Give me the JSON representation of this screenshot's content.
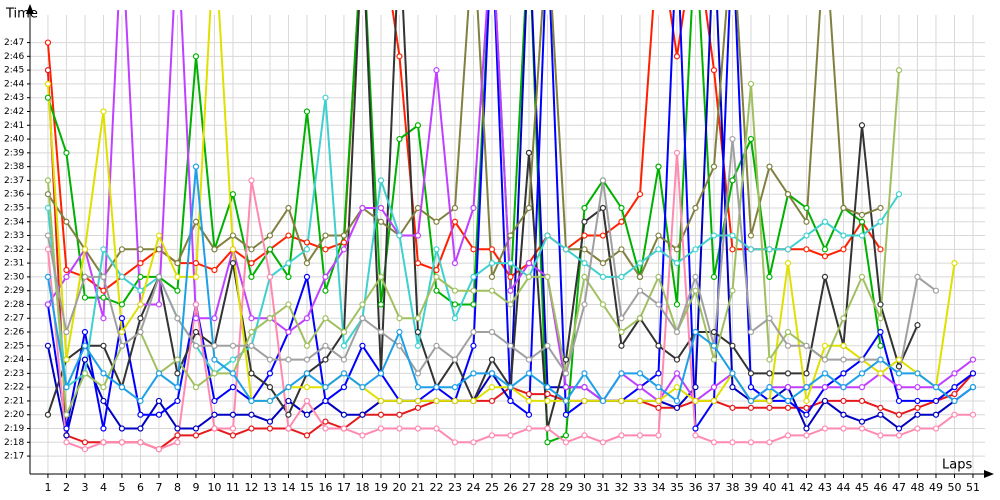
{
  "chart_data": {
    "type": "line",
    "x_label": "Laps",
    "y_label": "Time",
    "x": [
      1,
      2,
      3,
      4,
      5,
      6,
      7,
      8,
      9,
      10,
      11,
      12,
      13,
      14,
      15,
      16,
      17,
      18,
      19,
      20,
      21,
      22,
      23,
      24,
      25,
      26,
      27,
      28,
      29,
      30,
      31,
      32,
      33,
      34,
      35,
      36,
      37,
      38,
      39,
      40,
      41,
      42,
      43,
      44,
      45,
      46,
      47,
      48,
      49,
      50,
      51
    ],
    "xlim": [
      0.03,
      51.65
    ],
    "xticks": [
      1,
      2,
      3,
      4,
      5,
      6,
      7,
      8,
      9,
      10,
      11,
      12,
      13,
      14,
      15,
      16,
      17,
      18,
      19,
      20,
      21,
      22,
      23,
      24,
      25,
      26,
      27,
      28,
      29,
      30,
      31,
      32,
      33,
      34,
      35,
      36,
      37,
      38,
      39,
      40,
      41,
      42,
      43,
      44,
      45,
      46,
      47,
      48,
      49,
      50,
      51
    ],
    "ylim": [
      135.7,
      169
    ],
    "yticks": [
      {
        "value": 137,
        "label": "2:17"
      },
      {
        "value": 138,
        "label": "2:18"
      },
      {
        "value": 139,
        "label": "2:19"
      },
      {
        "value": 140,
        "label": "2:20"
      },
      {
        "value": 141,
        "label": "2:21"
      },
      {
        "value": 142,
        "label": "2:22"
      },
      {
        "value": 143,
        "label": "2:23"
      },
      {
        "value": 144,
        "label": "2:24"
      },
      {
        "value": 145,
        "label": "2:25"
      },
      {
        "value": 146,
        "label": "2:26"
      },
      {
        "value": 147,
        "label": "2:27"
      },
      {
        "value": 148,
        "label": "2:28"
      },
      {
        "value": 149,
        "label": "2:29"
      },
      {
        "value": 150,
        "label": "2:30"
      },
      {
        "value": 151,
        "label": "2:31"
      },
      {
        "value": 152,
        "label": "2:32"
      },
      {
        "value": 153,
        "label": "2:33"
      },
      {
        "value": 154,
        "label": "2:34"
      },
      {
        "value": 155,
        "label": "2:35"
      },
      {
        "value": 156,
        "label": "2:36"
      },
      {
        "value": 157,
        "label": "2:37"
      },
      {
        "value": 158,
        "label": "2:38"
      },
      {
        "value": 159,
        "label": "2:39"
      },
      {
        "value": 160,
        "label": "2:40"
      },
      {
        "value": 161,
        "label": "2:41"
      },
      {
        "value": 162,
        "label": "2:42"
      },
      {
        "value": 163,
        "label": "2:43"
      },
      {
        "value": 164,
        "label": "2:44"
      },
      {
        "value": 165,
        "label": "2:45"
      },
      {
        "value": 166,
        "label": "2:46"
      },
      {
        "value": 167,
        "label": "2:47"
      }
    ],
    "grid": true,
    "series": [
      {
        "color": "#e41a1c",
        "values": [
          165,
          138.5,
          138,
          138,
          138,
          138,
          137.5,
          138.5,
          138.5,
          139,
          138.5,
          139,
          139,
          139,
          138.5,
          139.5,
          139,
          140,
          140,
          140,
          140.5,
          141,
          141,
          141,
          141,
          142,
          141.5,
          141.5,
          141,
          141,
          141,
          141,
          141,
          140.5,
          140.5,
          141,
          141,
          140.5,
          140.5,
          140.5,
          140.5,
          140.5,
          141,
          141,
          141,
          140.5,
          140,
          140.5,
          141,
          141.5,
          143
        ]
      },
      {
        "color": "#ff2000",
        "values": [
          167,
          150.5,
          150,
          149,
          150,
          151,
          152,
          151,
          151,
          150.5,
          152,
          151,
          152,
          153,
          152.5,
          152,
          152.5,
          175,
          175,
          166,
          151,
          150.5,
          154,
          152,
          152,
          150,
          151,
          153,
          152,
          153,
          153,
          154,
          156,
          175,
          166,
          175,
          165,
          152,
          152,
          152,
          152,
          152,
          151.5,
          152,
          154,
          152,
          null,
          null,
          null,
          null,
          null
        ]
      },
      {
        "color": "#00b000",
        "values": [
          163,
          159,
          148.5,
          148.5,
          148,
          150,
          150,
          149,
          166,
          152,
          156,
          150,
          152,
          150,
          162,
          149,
          153,
          175,
          148,
          160,
          161,
          149,
          148,
          148,
          175,
          149,
          175,
          138,
          138.5,
          155,
          157,
          155,
          150,
          158,
          148,
          175,
          150,
          157,
          160,
          150,
          156,
          155,
          152,
          155,
          154,
          145,
          null,
          null,
          null,
          null,
          null
        ]
      },
      {
        "color": "#0000c0",
        "values": [
          145,
          138.5,
          144,
          141,
          139,
          139,
          141,
          139,
          139,
          140,
          140,
          140,
          139.5,
          141,
          140,
          141,
          140,
          140,
          141,
          141,
          141,
          141,
          141,
          141,
          143,
          141,
          175,
          142,
          142,
          142,
          141,
          141,
          141,
          141,
          140.5,
          142,
          175,
          142,
          141,
          141,
          142,
          139,
          141,
          140,
          139.5,
          140,
          139,
          140,
          140,
          141,
          142
        ]
      },
      {
        "color": "#0000ff",
        "values": [
          148,
          139,
          146,
          139,
          147,
          140,
          140,
          141,
          148,
          141,
          142,
          141,
          143,
          146,
          150,
          141,
          142,
          145,
          143,
          141,
          141,
          142,
          141,
          145,
          175,
          141,
          140,
          175,
          140,
          141,
          141,
          141,
          142,
          143,
          175,
          139,
          141,
          175,
          142,
          141,
          141,
          140,
          142,
          143,
          144,
          146,
          141,
          141,
          141,
          142,
          143
        ]
      },
      {
        "color": "#333333",
        "values": [
          140,
          144,
          145,
          145,
          142,
          147,
          150,
          143,
          146,
          145,
          151,
          143,
          142,
          140,
          143,
          144,
          146,
          175,
          143,
          175,
          146,
          142,
          144,
          141,
          144,
          142,
          159,
          139,
          144,
          154,
          155,
          145,
          147,
          145,
          144,
          146,
          146,
          145,
          143,
          143,
          143,
          143,
          150,
          145,
          161,
          148,
          143.5,
          146.5,
          null,
          null,
          null
        ]
      },
      {
        "color": "#808040",
        "values": [
          156,
          154,
          152,
          150,
          152,
          152,
          152,
          151,
          154,
          152,
          153,
          152,
          153,
          155,
          151,
          153,
          153,
          155,
          154,
          153,
          155,
          154,
          155,
          175,
          150,
          153,
          155,
          175,
          152,
          152,
          151,
          152,
          150,
          153,
          152,
          155,
          158,
          175,
          153,
          158,
          156,
          154,
          175,
          155,
          154.5,
          155,
          null,
          null,
          null,
          null,
          null
        ]
      },
      {
        "color": "#c040ff",
        "values": [
          148,
          150,
          152,
          147,
          175,
          148,
          148,
          175,
          147,
          147,
          152,
          147,
          147,
          146,
          147,
          150,
          152,
          155,
          155,
          153,
          153,
          165,
          151,
          155,
          175,
          149,
          151,
          150,
          142,
          142,
          141,
          143,
          142,
          141,
          143,
          141,
          142,
          143,
          141,
          142,
          142,
          142,
          142,
          142,
          142,
          143,
          142,
          142,
          142,
          143,
          144
        ]
      },
      {
        "color": "#40d0d0",
        "values": [
          155,
          142,
          143,
          152,
          150,
          149,
          150,
          147,
          145,
          143,
          144,
          145,
          150,
          151,
          152,
          163,
          145,
          147,
          157,
          153,
          145,
          152,
          147,
          150,
          151,
          151,
          150,
          153,
          152,
          151,
          150,
          150,
          151,
          152,
          151,
          152,
          153,
          153,
          152,
          152,
          152,
          153,
          154,
          153,
          153,
          154,
          156,
          null,
          null,
          null,
          null
        ]
      },
      {
        "color": "#ff8ab0",
        "values": [
          152,
          138,
          137.5,
          138,
          138,
          138,
          137.5,
          138,
          148,
          139,
          139,
          157,
          150,
          139,
          141,
          139,
          139,
          138.5,
          139,
          139,
          139,
          139,
          138,
          138,
          138.5,
          138.5,
          139,
          139,
          138,
          138.5,
          138,
          138.5,
          138.5,
          138.5,
          159,
          138.5,
          138,
          138,
          138,
          138,
          138.5,
          138.5,
          139,
          139,
          139,
          138.5,
          138.5,
          139,
          139,
          140,
          140
        ]
      },
      {
        "color": "#e0e000",
        "values": [
          164,
          144,
          152,
          162,
          146,
          148,
          153,
          150,
          150,
          175,
          152,
          141,
          141,
          142,
          142,
          142,
          143,
          142,
          141,
          141,
          141,
          141,
          141,
          141,
          142,
          142,
          141,
          141,
          141,
          141,
          141,
          141,
          141,
          141,
          142,
          141,
          141,
          143,
          141,
          141,
          151,
          141,
          145,
          145,
          144,
          143,
          144,
          143,
          142,
          151,
          null
        ]
      },
      {
        "color": "#a0c060",
        "values": [
          157,
          140,
          143,
          142,
          145,
          146,
          143,
          144,
          142,
          143,
          143,
          146,
          147,
          148,
          145,
          147,
          146,
          148,
          150,
          147,
          147,
          150,
          149,
          149,
          149,
          148,
          150,
          150,
          143,
          150,
          148,
          146,
          147,
          150,
          146,
          149,
          144,
          149,
          164,
          144,
          146,
          145,
          144,
          147,
          150,
          147,
          165,
          null,
          null,
          null,
          null
        ]
      },
      {
        "color": "#a0a0a0",
        "values": [
          153,
          146,
          150,
          150,
          145,
          146,
          150,
          147,
          145,
          145,
          145,
          145,
          144,
          144,
          144,
          145,
          144,
          147,
          146,
          145,
          143,
          145,
          144,
          146,
          146,
          145,
          144,
          145,
          143,
          148,
          157,
          147,
          149,
          148,
          146,
          150,
          145,
          160,
          146,
          147,
          145,
          145,
          144,
          144,
          144,
          144,
          143,
          150,
          149,
          null,
          null
        ]
      },
      {
        "color": "#1ea0e8",
        "values": [
          150,
          142,
          145,
          143,
          142,
          141,
          143,
          142,
          158,
          144,
          143,
          141,
          141,
          142,
          143,
          142,
          143,
          142,
          143,
          146,
          142,
          142,
          142,
          143,
          143,
          142,
          143,
          142,
          141,
          143,
          141,
          143,
          143,
          142,
          141,
          146,
          145,
          143,
          141,
          142,
          141,
          142,
          143,
          142,
          143,
          144,
          143,
          143,
          142,
          141,
          142
        ]
      }
    ]
  }
}
